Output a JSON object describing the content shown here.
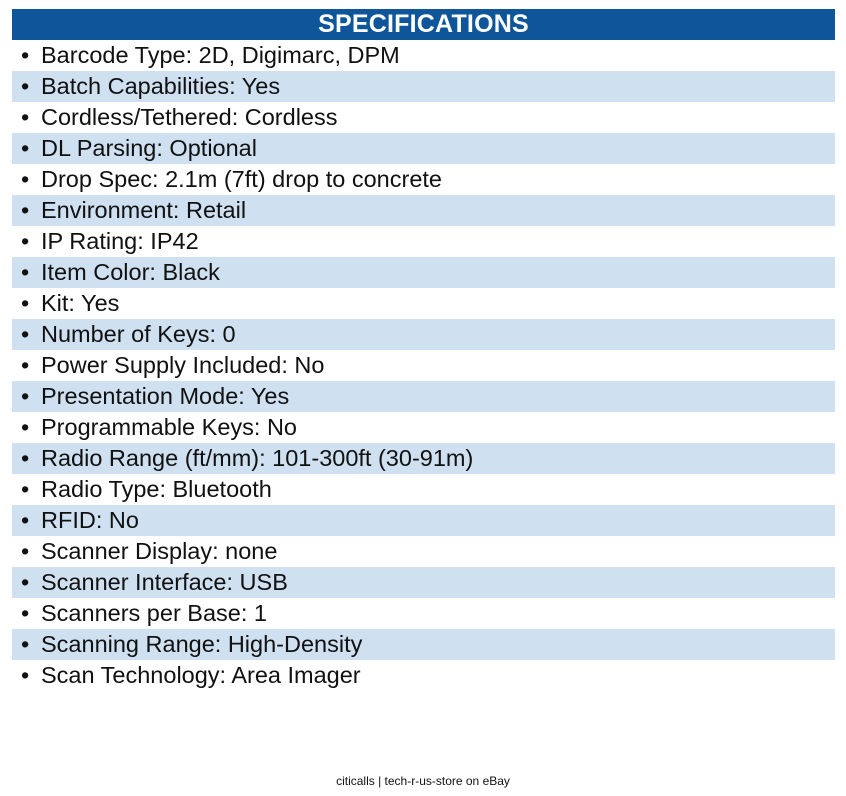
{
  "header": {
    "title": "SPECIFICATIONS"
  },
  "specs": [
    "Barcode Type: 2D, Digimarc, DPM",
    "Batch Capabilities: Yes",
    "Cordless/Tethered: Cordless",
    "DL Parsing: Optional",
    "Drop Spec: 2.1m (7ft) drop to concrete",
    "Environment: Retail",
    "IP Rating: IP42",
    "Item Color: Black",
    "Kit: Yes",
    "Number of Keys: 0",
    "Power Supply Included: No",
    "Presentation Mode: Yes",
    "Programmable Keys: No",
    "Radio Range (ft/mm): 101-300ft (30-91m)",
    "Radio Type: Bluetooth",
    "RFID: No",
    "Scanner Display: none",
    "Scanner Interface: USB",
    "Scanners per Base: 1",
    "Scanning Range: High-Density",
    "Scan Technology: Area Imager"
  ],
  "bullet": "•",
  "footer": {
    "text": "citicalls | tech-r-us-store on eBay"
  },
  "colors": {
    "header_bg": "#0e5599",
    "stripe_bg": "#cfe0f1"
  }
}
